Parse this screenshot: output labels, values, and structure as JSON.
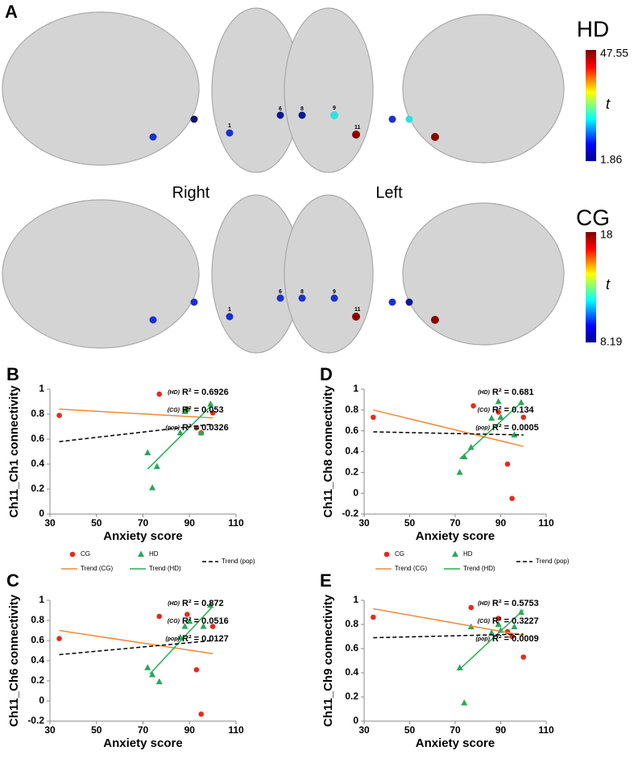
{
  "panel_a": {
    "label": "A",
    "right": "Right",
    "left": "Left",
    "t": "t",
    "channels": [
      "1",
      "6",
      "8",
      "9",
      "11"
    ],
    "rows": [
      {
        "group": "HD",
        "scale_max": "47.55",
        "scale_min": "1.86"
      },
      {
        "group": "CG",
        "scale_max": "18",
        "scale_min": "8.19"
      }
    ]
  },
  "chart_data": [
    {
      "type": "scatter",
      "panel": "B",
      "xlabel": "Anxiety score",
      "ylabel": "Ch11_Ch1 connectivity",
      "xlim": [
        30,
        110
      ],
      "xticks": [
        30,
        50,
        70,
        90,
        110
      ],
      "ylim": [
        0,
        1
      ],
      "yticks": [
        0,
        0.2,
        0.4,
        0.6,
        0.8,
        1
      ],
      "legend": true,
      "annotations": [
        {
          "group": "(HD)",
          "text": "R² = 0.6926"
        },
        {
          "group": "(CG)",
          "text": "R² = 0.053"
        },
        {
          "group": "(pop)",
          "text": "R² = 0.0326"
        }
      ],
      "series": [
        {
          "name": "CG",
          "mode": "markers",
          "marker": "circle",
          "color": "#e8291c",
          "x": [
            34,
            77,
            89,
            93,
            95,
            100
          ],
          "values": [
            0.79,
            0.96,
            0.84,
            0.69,
            0.65,
            0.81
          ]
        },
        {
          "name": "HD",
          "mode": "markers",
          "marker": "triangle",
          "color": "#2ca65a",
          "x": [
            72,
            74,
            76,
            86,
            88,
            89,
            95,
            99
          ],
          "values": [
            0.49,
            0.21,
            0.38,
            0.65,
            0.82,
            0.84,
            0.65,
            0.88
          ]
        },
        {
          "name": "Trend (CG)",
          "mode": "lines",
          "color": "#f08a3a",
          "x": [
            34,
            100
          ],
          "values": [
            0.84,
            0.77
          ]
        },
        {
          "name": "Trend (HD)",
          "mode": "lines",
          "color": "#22b14c",
          "x": [
            72,
            100
          ],
          "values": [
            0.36,
            0.88
          ]
        },
        {
          "name": "Trend (pop)",
          "mode": "lines",
          "dash": true,
          "color": "#000000",
          "x": [
            34,
            100
          ],
          "values": [
            0.58,
            0.72
          ]
        }
      ]
    },
    {
      "type": "scatter",
      "panel": "D",
      "xlabel": "Anxiety score",
      "ylabel": "Ch11_Ch8 connectivity",
      "xlim": [
        30,
        110
      ],
      "xticks": [
        30,
        50,
        70,
        90,
        110
      ],
      "ylim": [
        -0.2,
        1
      ],
      "yticks": [
        -0.2,
        0,
        0.2,
        0.4,
        0.6,
        0.8,
        1
      ],
      "legend": true,
      "annotations": [
        {
          "group": "(HD)",
          "text": "R² = 0.681"
        },
        {
          "group": "(CG)",
          "text": "R² = 0.134"
        },
        {
          "group": "(pop)",
          "text": "R² = 0.0005"
        }
      ],
      "series": [
        {
          "name": "CG",
          "mode": "markers",
          "marker": "circle",
          "color": "#e8291c",
          "x": [
            34,
            78,
            89,
            93,
            95,
            100
          ],
          "values": [
            0.73,
            0.84,
            0.78,
            0.28,
            -0.05,
            0.73
          ]
        },
        {
          "name": "HD",
          "mode": "markers",
          "marker": "triangle",
          "color": "#2ca65a",
          "x": [
            72,
            74,
            77,
            86,
            89,
            90,
            96,
            99
          ],
          "values": [
            0.2,
            0.35,
            0.44,
            0.72,
            0.88,
            0.73,
            0.56,
            0.87
          ]
        },
        {
          "name": "Trend (CG)",
          "mode": "lines",
          "color": "#f08a3a",
          "x": [
            34,
            100
          ],
          "values": [
            0.8,
            0.45
          ]
        },
        {
          "name": "Trend (HD)",
          "mode": "lines",
          "color": "#22b14c",
          "x": [
            72,
            99
          ],
          "values": [
            0.33,
            0.87
          ]
        },
        {
          "name": "Trend (pop)",
          "mode": "lines",
          "dash": true,
          "color": "#000000",
          "x": [
            34,
            100
          ],
          "values": [
            0.59,
            0.56
          ]
        }
      ]
    },
    {
      "type": "scatter",
      "panel": "C",
      "xlabel": "Anxiety score",
      "ylabel": "Ch11_Ch6 connectivity",
      "xlim": [
        30,
        110
      ],
      "xticks": [
        30,
        50,
        70,
        90,
        110
      ],
      "ylim": [
        -0.2,
        1
      ],
      "yticks": [
        -0.2,
        0,
        0.2,
        0.4,
        0.6,
        0.8,
        1
      ],
      "legend": false,
      "annotations": [
        {
          "group": "(HD)",
          "text": "R² = 0.872"
        },
        {
          "group": "(CG)",
          "text": "R² = 0.0516"
        },
        {
          "group": "(pop)",
          "text": "R² = 0.0127"
        }
      ],
      "series": [
        {
          "name": "CG",
          "mode": "markers",
          "marker": "circle",
          "color": "#e8291c",
          "x": [
            34,
            77,
            89,
            93,
            95,
            100
          ],
          "values": [
            0.62,
            0.84,
            0.86,
            0.31,
            -0.13,
            0.74
          ]
        },
        {
          "name": "HD",
          "mode": "markers",
          "marker": "triangle",
          "color": "#2ca65a",
          "x": [
            72,
            74,
            77,
            86,
            88,
            90,
            96,
            99
          ],
          "values": [
            0.33,
            0.26,
            0.19,
            0.63,
            0.74,
            0.79,
            0.74,
            0.95
          ]
        },
        {
          "name": "Trend (CG)",
          "mode": "lines",
          "color": "#f08a3a",
          "x": [
            34,
            100
          ],
          "values": [
            0.7,
            0.47
          ]
        },
        {
          "name": "Trend (HD)",
          "mode": "lines",
          "color": "#22b14c",
          "x": [
            73,
            100
          ],
          "values": [
            0.27,
            0.94
          ]
        },
        {
          "name": "Trend (pop)",
          "mode": "lines",
          "dash": true,
          "color": "#000000",
          "x": [
            34,
            100
          ],
          "values": [
            0.46,
            0.6
          ]
        }
      ]
    },
    {
      "type": "scatter",
      "panel": "E",
      "xlabel": "Anxiety score",
      "ylabel": "Ch11_Ch9 connectivity",
      "xlim": [
        30,
        110
      ],
      "xticks": [
        30,
        50,
        70,
        90,
        110
      ],
      "ylim": [
        0,
        1
      ],
      "yticks": [
        0,
        0.2,
        0.4,
        0.6,
        0.8,
        1
      ],
      "legend": false,
      "annotations": [
        {
          "group": "(HD)",
          "text": "R² = 0.5753"
        },
        {
          "group": "(CG)",
          "text": "R² = 0.3227"
        },
        {
          "group": "(pop)",
          "text": "R² = 0.0009"
        }
      ],
      "series": [
        {
          "name": "CG",
          "mode": "markers",
          "marker": "circle",
          "color": "#e8291c",
          "x": [
            34,
            77,
            89,
            93,
            95,
            100
          ],
          "values": [
            0.86,
            0.94,
            0.85,
            0.74,
            0.7,
            0.53
          ]
        },
        {
          "name": "HD",
          "mode": "markers",
          "marker": "triangle",
          "color": "#2ca65a",
          "x": [
            72,
            74,
            77,
            86,
            89,
            90,
            96,
            99
          ],
          "values": [
            0.44,
            0.15,
            0.78,
            0.73,
            0.8,
            0.75,
            0.78,
            0.9
          ]
        },
        {
          "name": "Trend (CG)",
          "mode": "lines",
          "color": "#f08a3a",
          "x": [
            34,
            100
          ],
          "values": [
            0.93,
            0.71
          ]
        },
        {
          "name": "Trend (HD)",
          "mode": "lines",
          "color": "#22b14c",
          "x": [
            72,
            100
          ],
          "values": [
            0.43,
            0.92
          ]
        },
        {
          "name": "Trend (pop)",
          "mode": "lines",
          "dash": true,
          "color": "#000000",
          "x": [
            34,
            100
          ],
          "values": [
            0.69,
            0.72
          ]
        }
      ]
    }
  ]
}
